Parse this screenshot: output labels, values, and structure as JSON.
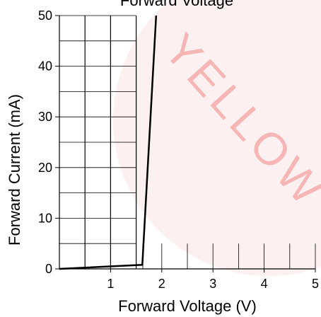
{
  "chart_data": {
    "type": "line",
    "title": "Forward Voltage",
    "x_label": "Forward Voltage (V)",
    "y_label": "Forward Current (mA)",
    "watermark": "YELLOW",
    "x": [
      0,
      1.62,
      1.89
    ],
    "series": [
      {
        "name": "Forward Current",
        "color": "#000000",
        "values": [
          0,
          0.8,
          50
        ]
      }
    ],
    "xlim": [
      0,
      5
    ],
    "ylim": [
      0,
      50
    ],
    "xticks": [
      1,
      2,
      3,
      4,
      5
    ],
    "yticks": [
      0,
      10,
      20,
      30,
      40,
      50
    ],
    "xgrid": [
      0.5,
      1,
      1.5,
      1.63,
      2,
      2.5,
      3,
      3.5,
      4,
      4.5,
      5
    ],
    "ygrid": [
      5,
      10,
      15,
      20,
      25,
      30,
      35,
      40,
      45,
      50
    ],
    "grid": true
  }
}
